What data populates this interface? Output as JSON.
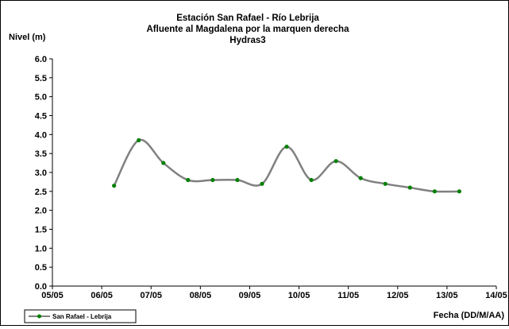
{
  "chart_data": {
    "type": "line",
    "title": [
      "Estación San Rafael - Río Lebrija",
      "Afluente al Magdalena por la marquen derecha",
      "Hydras3"
    ],
    "ylabel": "Nivel (m)",
    "xlabel": "Fecha (DD/M/AA)",
    "ylim": [
      0,
      6
    ],
    "ytick_labels": [
      "0.0",
      "0.5",
      "1.0",
      "1.5",
      "2.0",
      "2.5",
      "3.0",
      "3.5",
      "4.0",
      "4.5",
      "5.0",
      "5.5",
      "6.0"
    ],
    "xlim": [
      5,
      14
    ],
    "xtick_labels": [
      "05/05",
      "06/05",
      "07/05",
      "08/05",
      "09/05",
      "10/05",
      "11/05",
      "12/05",
      "13/05",
      "14/05"
    ],
    "grid": false,
    "legend_position": "bottom-left",
    "series": [
      {
        "name": "San Rafael - Lebrija",
        "line_color": "#808080",
        "marker_color": "#008000",
        "x": [
          6.25,
          6.75,
          7.25,
          7.75,
          8.25,
          8.75,
          9.25,
          9.75,
          10.25,
          10.75,
          11.25,
          11.75,
          12.25,
          12.75,
          13.25
        ],
        "y": [
          2.65,
          3.85,
          3.25,
          2.8,
          2.8,
          2.8,
          2.7,
          3.68,
          2.8,
          3.3,
          2.85,
          2.7,
          2.6,
          2.5,
          2.5
        ]
      }
    ]
  }
}
